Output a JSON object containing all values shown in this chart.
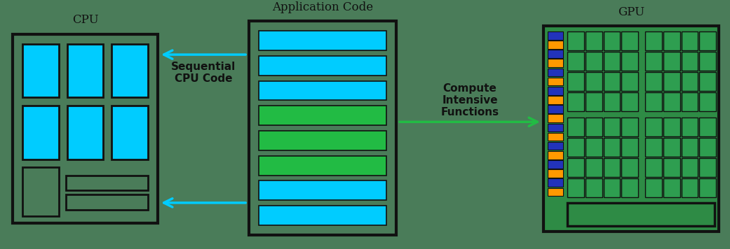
{
  "bg_color": "#4a7c59",
  "cpu_label": "CPU",
  "gpu_label": "GPU",
  "app_label": "Application Code",
  "seq_label": "Sequential\nCPU Code",
  "compute_label": "Compute\nIntensive\nFunctions",
  "cpu_box_border": "#111111",
  "cpu_core_color": "#00ccff",
  "gpu_box_color": "#2e8b45",
  "gpu_box_border": "#111111",
  "gpu_cell_color": "#2e9e50",
  "gpu_cell_border": "#111111",
  "gpu_blue_color": "#2233bb",
  "gpu_orange_color": "#ff9900",
  "app_box_border": "#111111",
  "app_blue_bar": "#00ccff",
  "app_green_bar": "#22bb44",
  "arrow_cyan": "#00ccff",
  "arrow_green": "#22bb44",
  "text_color": "#111111",
  "title_fontsize": 12,
  "label_fontsize": 11,
  "bar_pattern": [
    "blue",
    "blue",
    "blue",
    "green",
    "green",
    "green",
    "blue",
    "blue"
  ],
  "figw": 10.41,
  "figh": 3.56
}
